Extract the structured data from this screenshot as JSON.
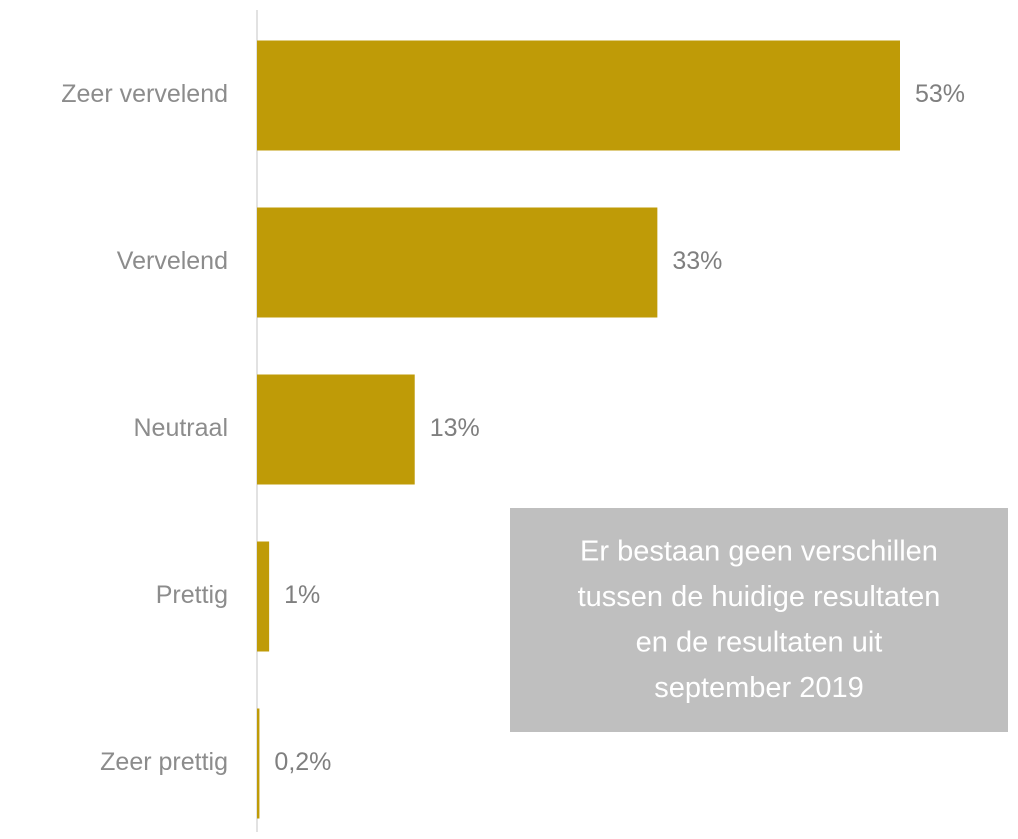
{
  "chart_data": {
    "type": "bar",
    "orientation": "horizontal",
    "categories": [
      "Zeer vervelend",
      "Vervelend",
      "Neutraal",
      "Prettig",
      "Zeer prettig"
    ],
    "values": [
      53,
      33,
      13,
      1,
      0.2
    ],
    "value_labels": [
      "53%",
      "33%",
      "13%",
      "1%",
      "0,2%"
    ],
    "color": "#bf9b07",
    "annotation": [
      "Er bestaan geen verschillen",
      "tussen de huidige resultaten",
      "en de resultaten uit",
      "september 2019"
    ]
  }
}
